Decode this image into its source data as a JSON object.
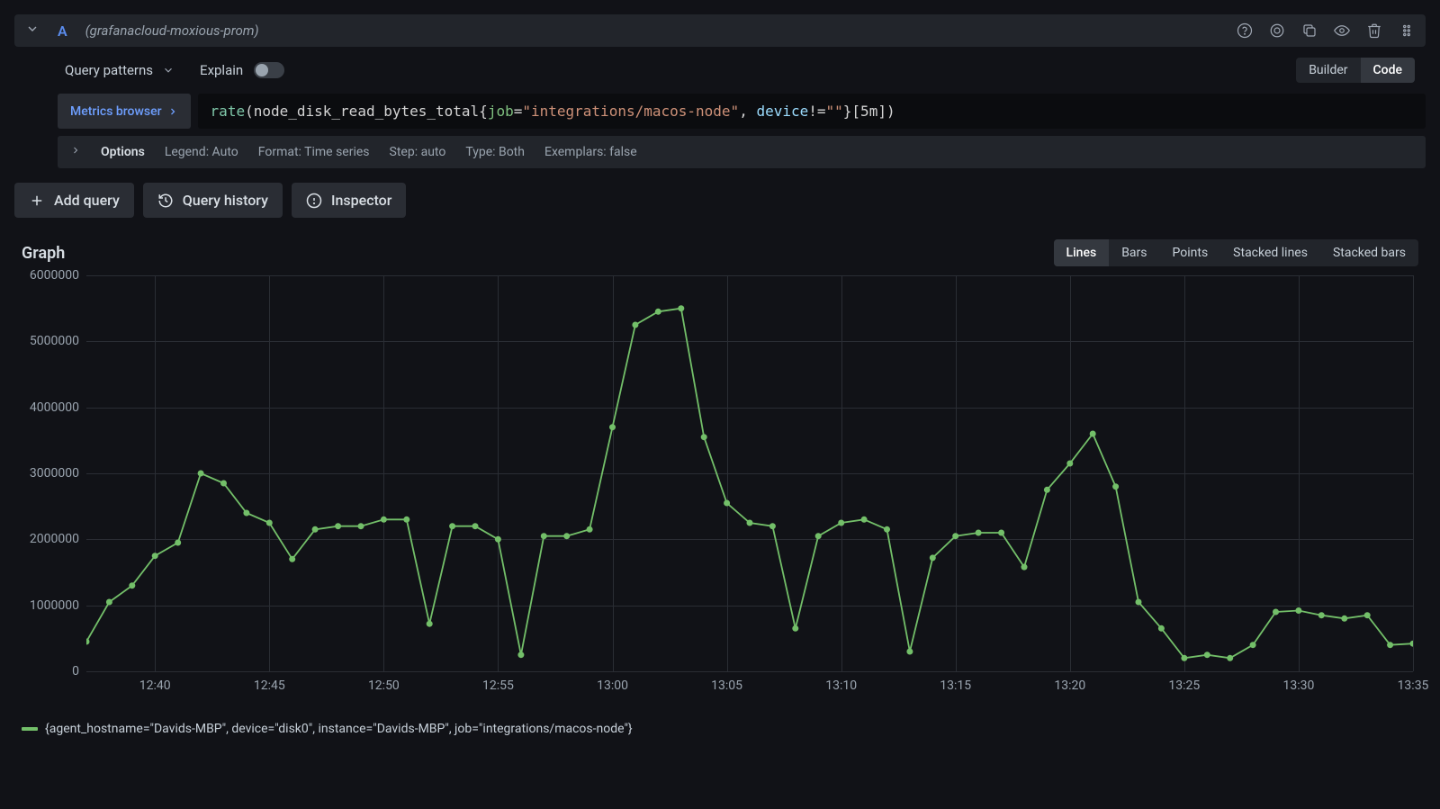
{
  "query_header": {
    "letter": "A",
    "datasource": "(grafanacloud-moxious-prom)"
  },
  "query_patterns_label": "Query patterns",
  "explain_label": "Explain",
  "explain_on": false,
  "builder_code": {
    "builder": "Builder",
    "code": "Code",
    "active": "Code"
  },
  "metrics_browser_label": "Metrics browser",
  "query": {
    "fn": "rate",
    "metric": "node_disk_read_bytes_total",
    "labels": [
      {
        "key": "job",
        "op": "=",
        "val": "\"integrations/macos-node\""
      },
      {
        "key": "device",
        "op": "!=",
        "val": "\"\""
      }
    ],
    "range": "[5m]"
  },
  "options": {
    "label": "Options",
    "legend": "Legend: Auto",
    "format": "Format: Time series",
    "step": "Step: auto",
    "type": "Type: Both",
    "exemplars": "Exemplars: false"
  },
  "actions": {
    "add_query": "Add query",
    "query_history": "Query history",
    "inspector": "Inspector"
  },
  "graph": {
    "title": "Graph",
    "modes": [
      "Lines",
      "Bars",
      "Points",
      "Stacked lines",
      "Stacked bars"
    ],
    "active_mode": "Lines"
  },
  "chart": {
    "type": "line",
    "series_color": "#73bf69",
    "marker_color": "#73bf69",
    "marker_radius": 3.5,
    "line_width": 1.8,
    "line_color": "#73bf69",
    "grid_color": "#2a2d34",
    "background_color": "#111217",
    "text_color": "#9aa4af",
    "font_size": 14,
    "ylim": [
      0,
      6000000
    ],
    "y_ticks": [
      0,
      1000000,
      2000000,
      3000000,
      4000000,
      5000000,
      6000000
    ],
    "x_ticks": [
      "12:40",
      "12:45",
      "12:50",
      "12:55",
      "13:00",
      "13:05",
      "13:10",
      "13:15",
      "13:20",
      "13:25",
      "13:30",
      "13:35"
    ],
    "x_tick_indices": [
      3,
      8,
      13,
      18,
      23,
      28,
      33,
      38,
      43,
      48,
      53,
      58
    ],
    "x_count": 59,
    "values": [
      450000,
      1050000,
      1300000,
      1750000,
      1950000,
      3000000,
      2850000,
      2400000,
      2250000,
      1700000,
      2150000,
      2200000,
      2200000,
      2300000,
      2300000,
      720000,
      2200000,
      2200000,
      2000000,
      250000,
      2050000,
      2050000,
      2150000,
      3700000,
      5250000,
      5450000,
      5500000,
      3550000,
      2550000,
      2250000,
      2200000,
      650000,
      2050000,
      2250000,
      2300000,
      2150000,
      300000,
      1720000,
      2050000,
      2100000,
      2100000,
      1580000,
      2750000,
      3150000,
      3600000,
      2800000,
      1050000,
      650000,
      200000,
      250000,
      200000,
      400000,
      900000,
      920000,
      850000,
      800000,
      850000,
      400000,
      420000
    ]
  },
  "legend": {
    "text": "{agent_hostname=\"Davids-MBP\", device=\"disk0\", instance=\"Davids-MBP\", job=\"integrations/macos-node\"}"
  }
}
